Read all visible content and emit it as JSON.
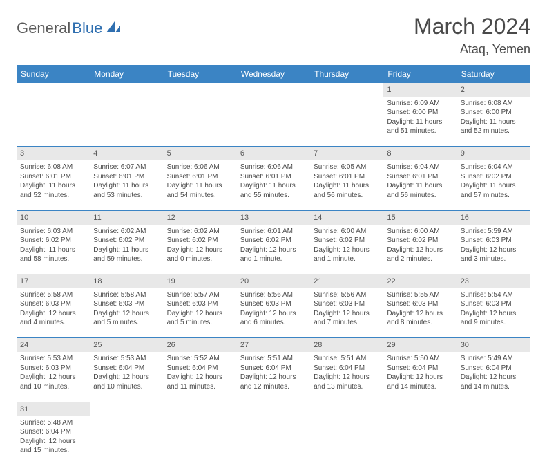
{
  "logo": {
    "text1": "General",
    "text2": "Blue"
  },
  "title": "March 2024",
  "location": "Ataq, Yemen",
  "colors": {
    "header_bg": "#3b84c4",
    "header_text": "#ffffff",
    "daynum_bg": "#e8e8e8",
    "border": "#3b84c4",
    "logo_gray": "#5a5a5a",
    "logo_blue": "#2f6fb0"
  },
  "dayHeaders": [
    "Sunday",
    "Monday",
    "Tuesday",
    "Wednesday",
    "Thursday",
    "Friday",
    "Saturday"
  ],
  "weeks": [
    [
      null,
      null,
      null,
      null,
      null,
      {
        "n": "1",
        "sunrise": "Sunrise: 6:09 AM",
        "sunset": "Sunset: 6:00 PM",
        "daylight": "Daylight: 11 hours and 51 minutes."
      },
      {
        "n": "2",
        "sunrise": "Sunrise: 6:08 AM",
        "sunset": "Sunset: 6:00 PM",
        "daylight": "Daylight: 11 hours and 52 minutes."
      }
    ],
    [
      {
        "n": "3",
        "sunrise": "Sunrise: 6:08 AM",
        "sunset": "Sunset: 6:01 PM",
        "daylight": "Daylight: 11 hours and 52 minutes."
      },
      {
        "n": "4",
        "sunrise": "Sunrise: 6:07 AM",
        "sunset": "Sunset: 6:01 PM",
        "daylight": "Daylight: 11 hours and 53 minutes."
      },
      {
        "n": "5",
        "sunrise": "Sunrise: 6:06 AM",
        "sunset": "Sunset: 6:01 PM",
        "daylight": "Daylight: 11 hours and 54 minutes."
      },
      {
        "n": "6",
        "sunrise": "Sunrise: 6:06 AM",
        "sunset": "Sunset: 6:01 PM",
        "daylight": "Daylight: 11 hours and 55 minutes."
      },
      {
        "n": "7",
        "sunrise": "Sunrise: 6:05 AM",
        "sunset": "Sunset: 6:01 PM",
        "daylight": "Daylight: 11 hours and 56 minutes."
      },
      {
        "n": "8",
        "sunrise": "Sunrise: 6:04 AM",
        "sunset": "Sunset: 6:01 PM",
        "daylight": "Daylight: 11 hours and 56 minutes."
      },
      {
        "n": "9",
        "sunrise": "Sunrise: 6:04 AM",
        "sunset": "Sunset: 6:02 PM",
        "daylight": "Daylight: 11 hours and 57 minutes."
      }
    ],
    [
      {
        "n": "10",
        "sunrise": "Sunrise: 6:03 AM",
        "sunset": "Sunset: 6:02 PM",
        "daylight": "Daylight: 11 hours and 58 minutes."
      },
      {
        "n": "11",
        "sunrise": "Sunrise: 6:02 AM",
        "sunset": "Sunset: 6:02 PM",
        "daylight": "Daylight: 11 hours and 59 minutes."
      },
      {
        "n": "12",
        "sunrise": "Sunrise: 6:02 AM",
        "sunset": "Sunset: 6:02 PM",
        "daylight": "Daylight: 12 hours and 0 minutes."
      },
      {
        "n": "13",
        "sunrise": "Sunrise: 6:01 AM",
        "sunset": "Sunset: 6:02 PM",
        "daylight": "Daylight: 12 hours and 1 minute."
      },
      {
        "n": "14",
        "sunrise": "Sunrise: 6:00 AM",
        "sunset": "Sunset: 6:02 PM",
        "daylight": "Daylight: 12 hours and 1 minute."
      },
      {
        "n": "15",
        "sunrise": "Sunrise: 6:00 AM",
        "sunset": "Sunset: 6:02 PM",
        "daylight": "Daylight: 12 hours and 2 minutes."
      },
      {
        "n": "16",
        "sunrise": "Sunrise: 5:59 AM",
        "sunset": "Sunset: 6:03 PM",
        "daylight": "Daylight: 12 hours and 3 minutes."
      }
    ],
    [
      {
        "n": "17",
        "sunrise": "Sunrise: 5:58 AM",
        "sunset": "Sunset: 6:03 PM",
        "daylight": "Daylight: 12 hours and 4 minutes."
      },
      {
        "n": "18",
        "sunrise": "Sunrise: 5:58 AM",
        "sunset": "Sunset: 6:03 PM",
        "daylight": "Daylight: 12 hours and 5 minutes."
      },
      {
        "n": "19",
        "sunrise": "Sunrise: 5:57 AM",
        "sunset": "Sunset: 6:03 PM",
        "daylight": "Daylight: 12 hours and 5 minutes."
      },
      {
        "n": "20",
        "sunrise": "Sunrise: 5:56 AM",
        "sunset": "Sunset: 6:03 PM",
        "daylight": "Daylight: 12 hours and 6 minutes."
      },
      {
        "n": "21",
        "sunrise": "Sunrise: 5:56 AM",
        "sunset": "Sunset: 6:03 PM",
        "daylight": "Daylight: 12 hours and 7 minutes."
      },
      {
        "n": "22",
        "sunrise": "Sunrise: 5:55 AM",
        "sunset": "Sunset: 6:03 PM",
        "daylight": "Daylight: 12 hours and 8 minutes."
      },
      {
        "n": "23",
        "sunrise": "Sunrise: 5:54 AM",
        "sunset": "Sunset: 6:03 PM",
        "daylight": "Daylight: 12 hours and 9 minutes."
      }
    ],
    [
      {
        "n": "24",
        "sunrise": "Sunrise: 5:53 AM",
        "sunset": "Sunset: 6:03 PM",
        "daylight": "Daylight: 12 hours and 10 minutes."
      },
      {
        "n": "25",
        "sunrise": "Sunrise: 5:53 AM",
        "sunset": "Sunset: 6:04 PM",
        "daylight": "Daylight: 12 hours and 10 minutes."
      },
      {
        "n": "26",
        "sunrise": "Sunrise: 5:52 AM",
        "sunset": "Sunset: 6:04 PM",
        "daylight": "Daylight: 12 hours and 11 minutes."
      },
      {
        "n": "27",
        "sunrise": "Sunrise: 5:51 AM",
        "sunset": "Sunset: 6:04 PM",
        "daylight": "Daylight: 12 hours and 12 minutes."
      },
      {
        "n": "28",
        "sunrise": "Sunrise: 5:51 AM",
        "sunset": "Sunset: 6:04 PM",
        "daylight": "Daylight: 12 hours and 13 minutes."
      },
      {
        "n": "29",
        "sunrise": "Sunrise: 5:50 AM",
        "sunset": "Sunset: 6:04 PM",
        "daylight": "Daylight: 12 hours and 14 minutes."
      },
      {
        "n": "30",
        "sunrise": "Sunrise: 5:49 AM",
        "sunset": "Sunset: 6:04 PM",
        "daylight": "Daylight: 12 hours and 14 minutes."
      }
    ],
    [
      {
        "n": "31",
        "sunrise": "Sunrise: 5:48 AM",
        "sunset": "Sunset: 6:04 PM",
        "daylight": "Daylight: 12 hours and 15 minutes."
      },
      null,
      null,
      null,
      null,
      null,
      null
    ]
  ]
}
